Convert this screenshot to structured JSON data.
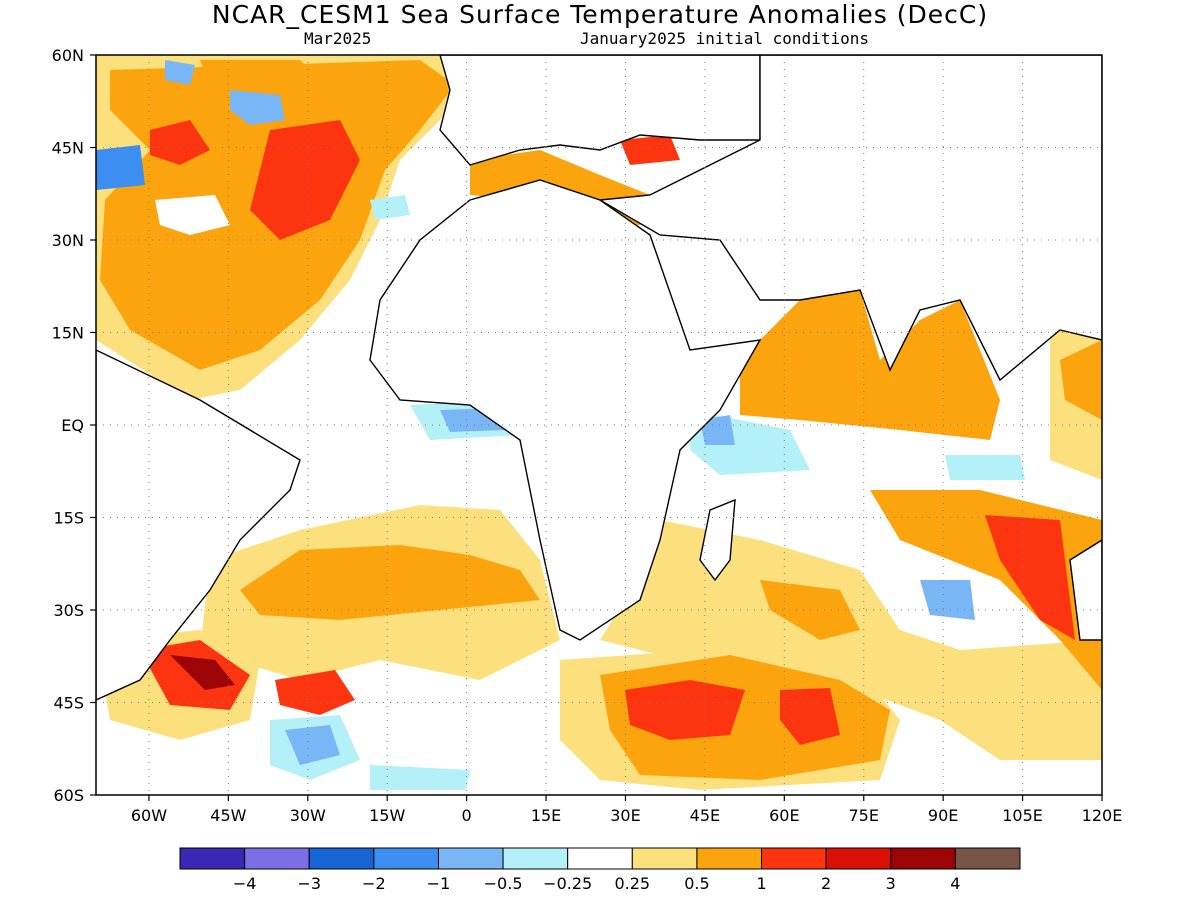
{
  "header": {
    "title": "NCAR_CESM1 Sea Surface Temperature Anomalies (DecC)",
    "valid_month": "Mar2025",
    "init_conditions": "January2025 initial conditions"
  },
  "map": {
    "lon_range": [
      -70,
      120
    ],
    "lat_range": [
      -60,
      60
    ],
    "lat_labels": [
      "60N",
      "45N",
      "30N",
      "15N",
      "EQ",
      "15S",
      "30S",
      "45S",
      "60S"
    ],
    "lon_labels": [
      "60W",
      "45W",
      "30W",
      "15W",
      "0",
      "15E",
      "30E",
      "45E",
      "60E",
      "75E",
      "90E",
      "105E",
      "120E"
    ],
    "grid": "dotted"
  },
  "colorbar": {
    "colors": [
      "#3a27b4",
      "#7b6ee6",
      "#1764d4",
      "#3c8ef0",
      "#78b6f5",
      "#b4f0f8",
      "#ffffff",
      "#fde07e",
      "#fca40e",
      "#fc3510",
      "#db1005",
      "#9c0405",
      "#795548"
    ],
    "labels": [
      "−4",
      "−3",
      "−2",
      "−1",
      "−0.5",
      "−0.25",
      "0.25",
      "0.5",
      "1",
      "2",
      "3",
      "4"
    ]
  }
}
